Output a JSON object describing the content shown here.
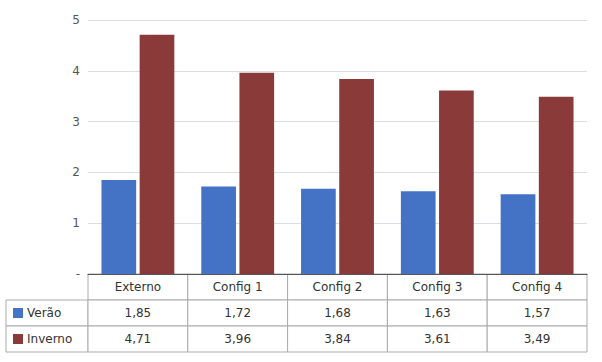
{
  "chart_data": {
    "type": "bar",
    "categories": [
      "Externo",
      "Config 1",
      "Config 2",
      "Config 3",
      "Config 4"
    ],
    "series": [
      {
        "name": "Verão",
        "color": "#4472C4",
        "values": [
          1.85,
          1.72,
          1.68,
          1.63,
          1.57
        ],
        "value_labels": [
          "1,85",
          "1,72",
          "1,68",
          "1,63",
          "1,57"
        ]
      },
      {
        "name": "Inverno",
        "color": "#8B3A3A",
        "values": [
          4.71,
          3.96,
          3.84,
          3.61,
          3.49
        ],
        "value_labels": [
          "4,71",
          "3,96",
          "3,84",
          "3,61",
          "3,49"
        ]
      }
    ],
    "ylim": [
      0,
      5
    ],
    "yticks": [
      {
        "value": 0,
        "label": "-"
      },
      1,
      2,
      3,
      4,
      5
    ],
    "grid": true,
    "tick_labels": "y"
  }
}
